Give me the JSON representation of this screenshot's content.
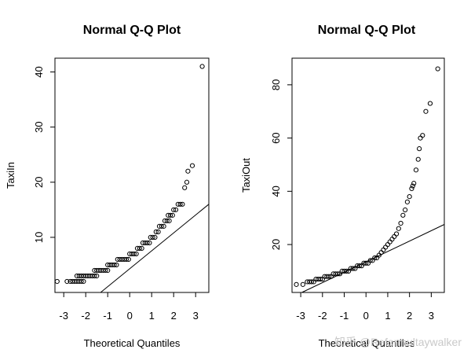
{
  "chart_data": [
    {
      "type": "scatter",
      "title": "Normal Q-Q Plot",
      "xlabel": "Theoretical Quantiles",
      "ylabel": "TaxiIn",
      "xlim": [
        -3.4,
        3.6
      ],
      "ylim": [
        0,
        42.5
      ],
      "xticks": [
        -3,
        -2,
        -1,
        0,
        1,
        2,
        3
      ],
      "yticks": [
        10,
        20,
        30,
        40
      ],
      "reference_line": {
        "slope": 3.25,
        "intercept": 4.3
      },
      "points": [
        [
          -3.3,
          2
        ],
        [
          -2.85,
          2
        ],
        [
          -2.7,
          2
        ],
        [
          -2.6,
          2
        ],
        [
          -2.5,
          2
        ],
        [
          -2.4,
          2
        ],
        [
          -2.3,
          2
        ],
        [
          -2.2,
          2
        ],
        [
          -2.1,
          2
        ],
        [
          -2.4,
          3
        ],
        [
          -2.3,
          3
        ],
        [
          -2.2,
          3
        ],
        [
          -2.1,
          3
        ],
        [
          -2.0,
          3
        ],
        [
          -1.9,
          3
        ],
        [
          -1.8,
          3
        ],
        [
          -1.7,
          3
        ],
        [
          -1.6,
          3
        ],
        [
          -1.5,
          3
        ],
        [
          -1.6,
          4
        ],
        [
          -1.5,
          4
        ],
        [
          -1.4,
          4
        ],
        [
          -1.3,
          4
        ],
        [
          -1.2,
          4
        ],
        [
          -1.1,
          4
        ],
        [
          -1.0,
          4
        ],
        [
          -1.0,
          5
        ],
        [
          -0.9,
          5
        ],
        [
          -0.8,
          5
        ],
        [
          -0.7,
          5
        ],
        [
          -0.6,
          5
        ],
        [
          -0.55,
          6
        ],
        [
          -0.45,
          6
        ],
        [
          -0.35,
          6
        ],
        [
          -0.25,
          6
        ],
        [
          -0.15,
          6
        ],
        [
          -0.05,
          6
        ],
        [
          0.0,
          7
        ],
        [
          0.1,
          7
        ],
        [
          0.2,
          7
        ],
        [
          0.3,
          7
        ],
        [
          0.35,
          8
        ],
        [
          0.45,
          8
        ],
        [
          0.55,
          8
        ],
        [
          0.6,
          9
        ],
        [
          0.7,
          9
        ],
        [
          0.8,
          9
        ],
        [
          0.9,
          9
        ],
        [
          0.95,
          10
        ],
        [
          1.05,
          10
        ],
        [
          1.15,
          10
        ],
        [
          1.2,
          11
        ],
        [
          1.3,
          11
        ],
        [
          1.35,
          12
        ],
        [
          1.45,
          12
        ],
        [
          1.55,
          12
        ],
        [
          1.6,
          13
        ],
        [
          1.7,
          13
        ],
        [
          1.8,
          13
        ],
        [
          1.75,
          14
        ],
        [
          1.85,
          14
        ],
        [
          1.95,
          14
        ],
        [
          2.0,
          15
        ],
        [
          2.1,
          15
        ],
        [
          2.2,
          16
        ],
        [
          2.3,
          16
        ],
        [
          2.4,
          16
        ],
        [
          2.5,
          19
        ],
        [
          2.6,
          20
        ],
        [
          2.65,
          22
        ],
        [
          2.85,
          23
        ],
        [
          3.3,
          41
        ]
      ]
    },
    {
      "type": "scatter",
      "title": "Normal Q-Q Plot",
      "xlabel": "Theoretical Quantiles",
      "ylabel": "TaxiOut",
      "xlim": [
        -3.4,
        3.6
      ],
      "ylim": [
        2,
        90
      ],
      "xticks": [
        -3,
        -2,
        -1,
        0,
        1,
        2,
        3
      ],
      "yticks": [
        20,
        40,
        60,
        80
      ],
      "reference_line": {
        "slope": 3.9,
        "intercept": 13.5
      },
      "points": [
        [
          -3.2,
          5
        ],
        [
          -2.9,
          5
        ],
        [
          -2.7,
          6
        ],
        [
          -2.6,
          6
        ],
        [
          -2.5,
          6
        ],
        [
          -2.4,
          6
        ],
        [
          -2.3,
          7
        ],
        [
          -2.2,
          7
        ],
        [
          -2.1,
          7
        ],
        [
          -2.0,
          7
        ],
        [
          -1.9,
          8
        ],
        [
          -1.8,
          8
        ],
        [
          -1.7,
          8
        ],
        [
          -1.6,
          8
        ],
        [
          -1.5,
          9
        ],
        [
          -1.4,
          9
        ],
        [
          -1.3,
          9
        ],
        [
          -1.2,
          9
        ],
        [
          -1.1,
          10
        ],
        [
          -1.0,
          10
        ],
        [
          -0.9,
          10
        ],
        [
          -0.8,
          10
        ],
        [
          -0.7,
          11
        ],
        [
          -0.6,
          11
        ],
        [
          -0.5,
          11
        ],
        [
          -0.4,
          12
        ],
        [
          -0.3,
          12
        ],
        [
          -0.2,
          12
        ],
        [
          -0.1,
          13
        ],
        [
          0.0,
          13
        ],
        [
          0.1,
          13
        ],
        [
          0.2,
          14
        ],
        [
          0.3,
          14
        ],
        [
          0.4,
          15
        ],
        [
          0.5,
          15
        ],
        [
          0.6,
          16
        ],
        [
          0.7,
          17
        ],
        [
          0.8,
          18
        ],
        [
          0.9,
          19
        ],
        [
          1.0,
          20
        ],
        [
          1.1,
          21
        ],
        [
          1.2,
          22
        ],
        [
          1.3,
          23
        ],
        [
          1.4,
          24
        ],
        [
          1.5,
          26
        ],
        [
          1.6,
          28
        ],
        [
          1.7,
          31
        ],
        [
          1.8,
          33
        ],
        [
          1.9,
          36
        ],
        [
          2.0,
          38
        ],
        [
          2.1,
          41
        ],
        [
          2.15,
          42
        ],
        [
          2.2,
          43
        ],
        [
          2.3,
          48
        ],
        [
          2.4,
          52
        ],
        [
          2.45,
          56
        ],
        [
          2.5,
          60
        ],
        [
          2.6,
          61
        ],
        [
          2.75,
          70
        ],
        [
          2.95,
          73
        ],
        [
          3.3,
          86
        ]
      ]
    }
  ],
  "watermark": "知乎 @Reformultaywalker"
}
